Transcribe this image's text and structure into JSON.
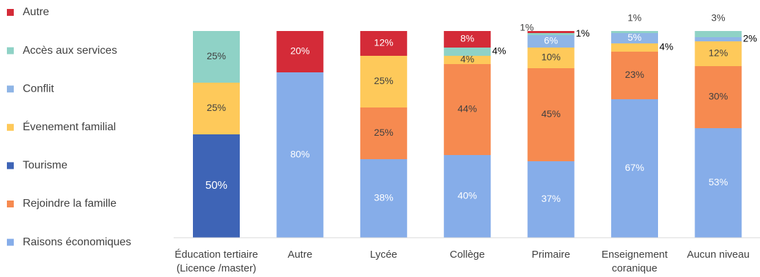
{
  "chart_data": {
    "type": "stacked-bar",
    "categories": [
      "Éducation tertiaire (Licence /master)",
      "Autre",
      "Lycée",
      "Collège",
      "Primaire",
      "Enseignement coranique",
      "Aucun niveau"
    ],
    "ylim": [
      0,
      100
    ],
    "legend": "left",
    "series": [
      {
        "name": "Raisons économiques",
        "color": "#86ade9",
        "values": [
          null,
          80,
          38,
          40,
          37,
          67,
          53
        ],
        "value_labels": [
          null,
          "80%",
          "38%",
          "40%",
          "37%",
          "67%",
          "53%"
        ]
      },
      {
        "name": "Rejoindre la famille",
        "color": "#f68a50",
        "values": [
          null,
          null,
          25,
          44,
          45,
          23,
          30
        ],
        "value_labels": [
          null,
          null,
          "25%",
          "44%",
          "45%",
          "23%",
          "30%"
        ]
      },
      {
        "name": "Tourisme",
        "color": "#3e64b6",
        "values": [
          50,
          null,
          null,
          null,
          null,
          null,
          null
        ],
        "value_labels": [
          "50%",
          null,
          null,
          null,
          null,
          null,
          null
        ]
      },
      {
        "name": "Évenement familial",
        "color": "#fec95a",
        "values": [
          25,
          null,
          25,
          4,
          10,
          4,
          12
        ],
        "value_labels": [
          "25%",
          null,
          "25%",
          "4%",
          "10%",
          "4%",
          "12%"
        ]
      },
      {
        "name": "Conflit",
        "color": "#8fb5e6",
        "values": [
          null,
          null,
          null,
          null,
          6,
          5,
          2
        ],
        "value_labels": [
          null,
          null,
          null,
          null,
          "6%",
          "5%",
          "2%"
        ]
      },
      {
        "name": "Accès aux services",
        "color": "#8fd2c6",
        "values": [
          25,
          null,
          null,
          4,
          1,
          1,
          3
        ],
        "value_labels": [
          "25%",
          null,
          null,
          "4%",
          "1%",
          "1%",
          "3%"
        ]
      },
      {
        "name": "Autre",
        "color": "#d42b38",
        "values": [
          null,
          20,
          12,
          8,
          1,
          null,
          null
        ],
        "value_labels": [
          null,
          "20%",
          "12%",
          "8%",
          "1%",
          null,
          null
        ]
      }
    ]
  }
}
